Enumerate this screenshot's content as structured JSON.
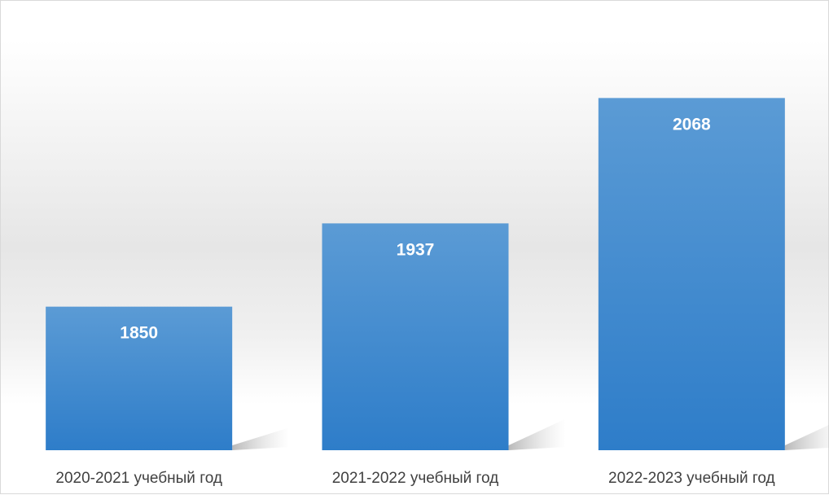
{
  "chart_data": {
    "type": "bar",
    "categories": [
      "2020-2021 учебный год",
      "2021-2022 учебный год",
      "2022-2023 учебный год"
    ],
    "values": [
      1850,
      1937,
      2068
    ],
    "title": "",
    "xlabel": "",
    "ylabel": "",
    "grid": false,
    "legend": "none",
    "data_labels": "inside-top",
    "colors": {
      "bar_top": "#5b9bd5",
      "bar_bottom": "#2e7dc9",
      "label_text": "#404040",
      "value_text": "#ffffff"
    }
  }
}
